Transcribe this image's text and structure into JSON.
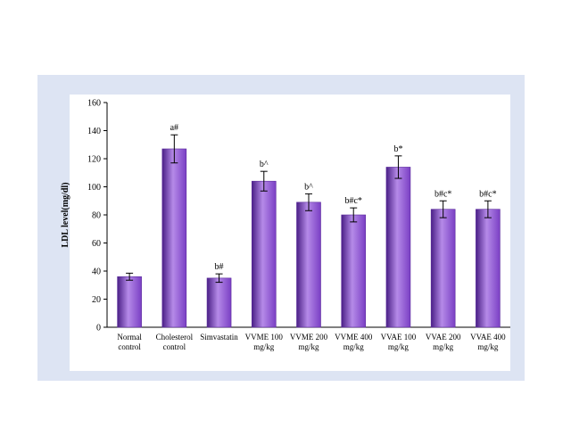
{
  "chart_data": {
    "type": "bar",
    "ylabel": "LDL level(mg/dl)",
    "ylim": [
      0,
      160
    ],
    "yticks": [
      0,
      20,
      40,
      60,
      80,
      100,
      120,
      140,
      160
    ],
    "categories": [
      [
        "Normal",
        "control"
      ],
      [
        "Cholesterol",
        "control"
      ],
      [
        "Simvastatin"
      ],
      [
        "VVME 100",
        "mg/kg"
      ],
      [
        "VVME 200",
        "mg/kg"
      ],
      [
        "VVME 400",
        "mg/kg"
      ],
      [
        "VVAE 100",
        "mg/kg"
      ],
      [
        "VVAE 200",
        "mg/kg"
      ],
      [
        "VVAE 400",
        "mg/kg"
      ]
    ],
    "values": [
      36,
      127,
      35,
      104,
      89,
      80,
      114,
      84,
      84
    ],
    "errors": [
      2.5,
      10,
      3,
      7,
      6,
      5,
      8,
      6,
      6
    ],
    "labels": [
      "",
      "a#",
      "b#",
      "b^",
      "b^",
      "b#c*",
      "b*",
      "b#c*",
      "b#c*"
    ],
    "grid": false,
    "bar_color": "#7a3fc4",
    "bar_color_light": "#b58ae8",
    "bar_color_dark": "#4a1f86"
  }
}
